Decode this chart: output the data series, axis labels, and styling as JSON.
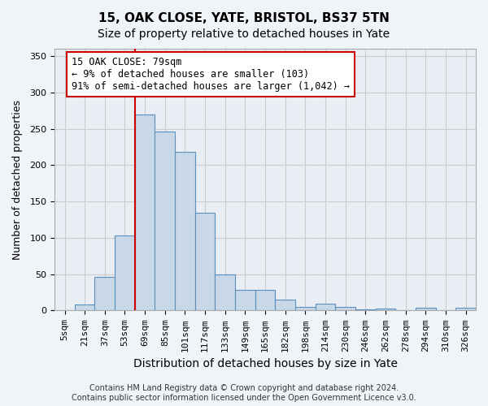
{
  "title1": "15, OAK CLOSE, YATE, BRISTOL, BS37 5TN",
  "title2": "Size of property relative to detached houses in Yate",
  "xlabel": "Distribution of detached houses by size in Yate",
  "ylabel": "Number of detached properties",
  "categories": [
    "5sqm",
    "21sqm",
    "37sqm",
    "53sqm",
    "69sqm",
    "85sqm",
    "101sqm",
    "117sqm",
    "133sqm",
    "149sqm",
    "165sqm",
    "182sqm",
    "198sqm",
    "214sqm",
    "230sqm",
    "246sqm",
    "262sqm",
    "278sqm",
    "294sqm",
    "310sqm",
    "326sqm"
  ],
  "bar_values": [
    0,
    8,
    46,
    103,
    270,
    246,
    218,
    134,
    50,
    28,
    28,
    15,
    5,
    9,
    5,
    2,
    3,
    0,
    4,
    0,
    4
  ],
  "bar_color": "#c8d8e8",
  "bar_edge_color": "#5a8fc0",
  "property_line_x": 4,
  "annotation_text": "15 OAK CLOSE: 79sqm\n← 9% of detached houses are smaller (103)\n91% of semi-detached houses are larger (1,042) →",
  "annotation_box_color": "#ffffff",
  "annotation_box_edge_color": "#cc0000",
  "vline_color": "#cc0000",
  "grid_color": "#cccccc",
  "background_color": "#e8eef4",
  "fig_background_color": "#f0f4f8",
  "ylim": [
    0,
    360
  ],
  "yticks": [
    0,
    50,
    100,
    150,
    200,
    250,
    300,
    350
  ],
  "footnote": "Contains HM Land Registry data © Crown copyright and database right 2024.\nContains public sector information licensed under the Open Government Licence v3.0.",
  "title1_fontsize": 11,
  "title2_fontsize": 10,
  "xlabel_fontsize": 10,
  "ylabel_fontsize": 9,
  "tick_fontsize": 8,
  "annotation_fontsize": 8.5,
  "footnote_fontsize": 7
}
